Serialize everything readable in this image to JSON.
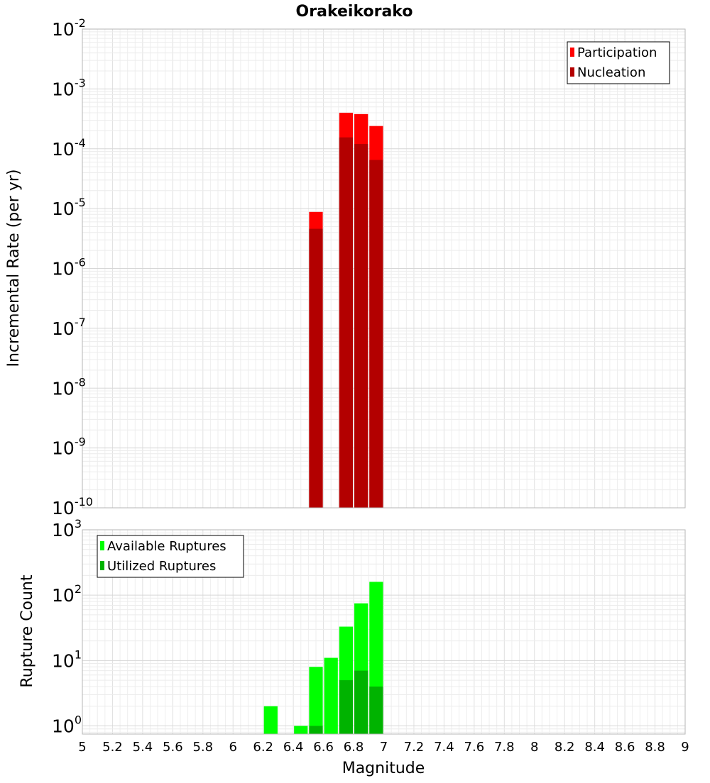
{
  "chart_data": [
    {
      "type": "bar",
      "title": "Orakeikorako",
      "xlabel": "",
      "ylabel": "Incremental Rate (per yr)",
      "yscale": "log",
      "xlim": [
        5,
        9
      ],
      "ylim": [
        1e-10,
        0.01
      ],
      "bar_width": 0.1,
      "grid": true,
      "legend_position": "top-right",
      "y_ticks": [
        {
          "base": "10",
          "exp": "-10"
        },
        {
          "base": "10",
          "exp": "-9"
        },
        {
          "base": "10",
          "exp": "-8"
        },
        {
          "base": "10",
          "exp": "-7"
        },
        {
          "base": "10",
          "exp": "-6"
        },
        {
          "base": "10",
          "exp": "-5"
        },
        {
          "base": "10",
          "exp": "-4"
        },
        {
          "base": "10",
          "exp": "-3"
        },
        {
          "base": "10",
          "exp": "-2"
        }
      ],
      "series": [
        {
          "name": "Participation",
          "color": "#ff0000",
          "points": [
            [
              6.55,
              8.8e-06
            ],
            [
              6.75,
              0.0004
            ],
            [
              6.85,
              0.00038
            ],
            [
              6.95,
              0.00024
            ]
          ]
        },
        {
          "name": "Nucleation",
          "color": "#b30000",
          "points": [
            [
              6.55,
              4.6e-06
            ],
            [
              6.75,
              0.000155
            ],
            [
              6.85,
              0.00012
            ],
            [
              6.95,
              6.5e-05
            ]
          ]
        }
      ]
    },
    {
      "type": "bar",
      "title": "",
      "xlabel": "Magnitude",
      "ylabel": "Rupture Count",
      "yscale": "log",
      "xlim": [
        5,
        9
      ],
      "ylim": [
        0.75,
        1000
      ],
      "bar_width": 0.1,
      "grid": true,
      "legend_position": "top-left",
      "x_ticks": [
        "5",
        "5.2",
        "5.4",
        "5.6",
        "5.8",
        "6",
        "6.2",
        "6.4",
        "6.6",
        "6.8",
        "7",
        "7.2",
        "7.4",
        "7.6",
        "7.8",
        "8",
        "8.2",
        "8.4",
        "8.6",
        "8.8",
        "9"
      ],
      "y_ticks": [
        {
          "base": "10",
          "exp": "0"
        },
        {
          "base": "10",
          "exp": "1"
        },
        {
          "base": "10",
          "exp": "2"
        },
        {
          "base": "10",
          "exp": "3"
        }
      ],
      "series": [
        {
          "name": "Available Ruptures",
          "color": "#00ff00",
          "points": [
            [
              6.25,
              2
            ],
            [
              6.45,
              1
            ],
            [
              6.55,
              8
            ],
            [
              6.65,
              11
            ],
            [
              6.75,
              33
            ],
            [
              6.85,
              75
            ],
            [
              6.95,
              160
            ]
          ]
        },
        {
          "name": "Utilized Ruptures",
          "color": "#00b300",
          "points": [
            [
              6.55,
              1
            ],
            [
              6.75,
              5
            ],
            [
              6.85,
              7
            ],
            [
              6.95,
              4
            ]
          ]
        }
      ]
    }
  ]
}
